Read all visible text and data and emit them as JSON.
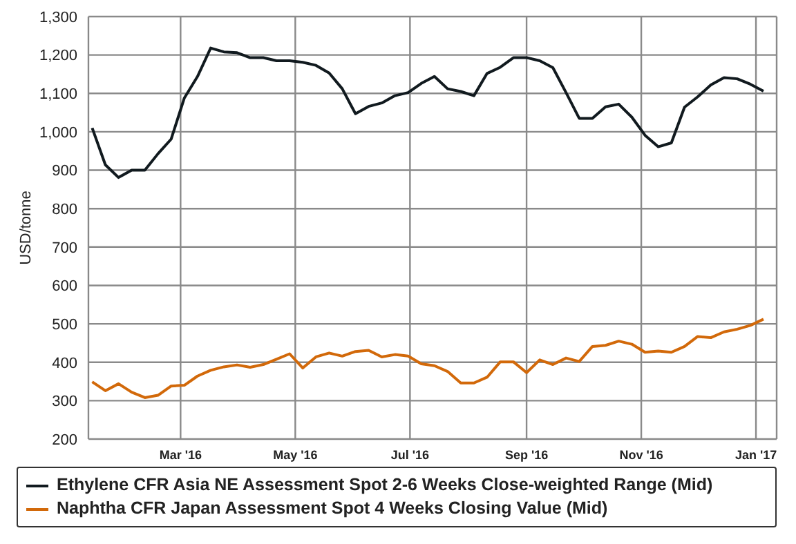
{
  "chart_data": {
    "type": "line",
    "ylabel": "USD/tonne",
    "x": [
      "2016-01-14",
      "2016-01-21",
      "2016-01-28",
      "2016-02-04",
      "2016-02-11",
      "2016-02-18",
      "2016-02-25",
      "2016-03-03",
      "2016-03-10",
      "2016-03-17",
      "2016-03-24",
      "2016-03-31",
      "2016-04-07",
      "2016-04-14",
      "2016-04-21",
      "2016-04-28",
      "2016-05-05",
      "2016-05-12",
      "2016-05-19",
      "2016-05-26",
      "2016-06-02",
      "2016-06-09",
      "2016-06-16",
      "2016-06-23",
      "2016-06-30",
      "2016-07-07",
      "2016-07-14",
      "2016-07-21",
      "2016-07-28",
      "2016-08-04",
      "2016-08-11",
      "2016-08-18",
      "2016-08-25",
      "2016-09-01",
      "2016-09-08",
      "2016-09-15",
      "2016-09-22",
      "2016-09-29",
      "2016-10-06",
      "2016-10-13",
      "2016-10-20",
      "2016-10-27",
      "2016-11-03",
      "2016-11-10",
      "2016-11-17",
      "2016-11-24",
      "2016-12-01",
      "2016-12-08",
      "2016-12-15",
      "2016-12-22",
      "2016-12-29",
      "2017-01-05"
    ],
    "series": [
      {
        "name": "Ethylene CFR Asia NE Assessment Spot 2-6 Weeks Close-weighted Range (Mid)",
        "color": "#111a1f",
        "values": [
          1010,
          914,
          881,
          900,
          900,
          943,
          981,
          1088,
          1144,
          1218,
          1208,
          1206,
          1193,
          1193,
          1185,
          1185,
          1181,
          1173,
          1153,
          1112,
          1047,
          1066,
          1075,
          1094,
          1102,
          1126,
          1144,
          1112,
          1105,
          1094,
          1152,
          1168,
          1193,
          1193,
          1185,
          1167,
          1102,
          1035,
          1035,
          1065,
          1072,
          1038,
          991,
          961,
          971,
          1064,
          1091,
          1122,
          1141,
          1138,
          1124,
          1106
        ]
      },
      {
        "name": "Naphtha CFR Japan Assessment Spot 4 Weeks Closing Value (Mid)",
        "color": "#d2690a",
        "values": [
          349,
          326,
          344,
          322,
          308,
          314,
          338,
          340,
          364,
          379,
          388,
          393,
          387,
          394,
          408,
          422,
          385,
          414,
          424,
          416,
          428,
          431,
          414,
          420,
          416,
          396,
          391,
          376,
          346,
          346,
          361,
          401,
          401,
          373,
          406,
          394,
          411,
          402,
          441,
          444,
          455,
          447,
          426,
          429,
          426,
          441,
          467,
          464,
          479,
          486,
          496,
          512
        ]
      }
    ],
    "xlim": [
      "2016-01-12",
      "2017-01-12"
    ],
    "xticks": [
      {
        "value": "2016-03-01",
        "label": "Mar '16"
      },
      {
        "value": "2016-05-01",
        "label": "May '16"
      },
      {
        "value": "2016-07-01",
        "label": "Jul '16"
      },
      {
        "value": "2016-09-01",
        "label": "Sep '16"
      },
      {
        "value": "2016-11-01",
        "label": "Nov '16"
      },
      {
        "value": "2017-01-01",
        "label": "Jan '17"
      }
    ],
    "ylim": [
      200,
      1300
    ],
    "yticks": [
      200,
      300,
      400,
      500,
      600,
      700,
      800,
      900,
      {
        "value": 1000,
        "label": "1,000"
      },
      {
        "value": 1100,
        "label": "1,100"
      },
      {
        "value": 1200,
        "label": "1,200"
      },
      {
        "value": 1300,
        "label": "1,300"
      }
    ],
    "grid": true,
    "legend": "bottom",
    "marker": "none",
    "line_style": "solid"
  }
}
